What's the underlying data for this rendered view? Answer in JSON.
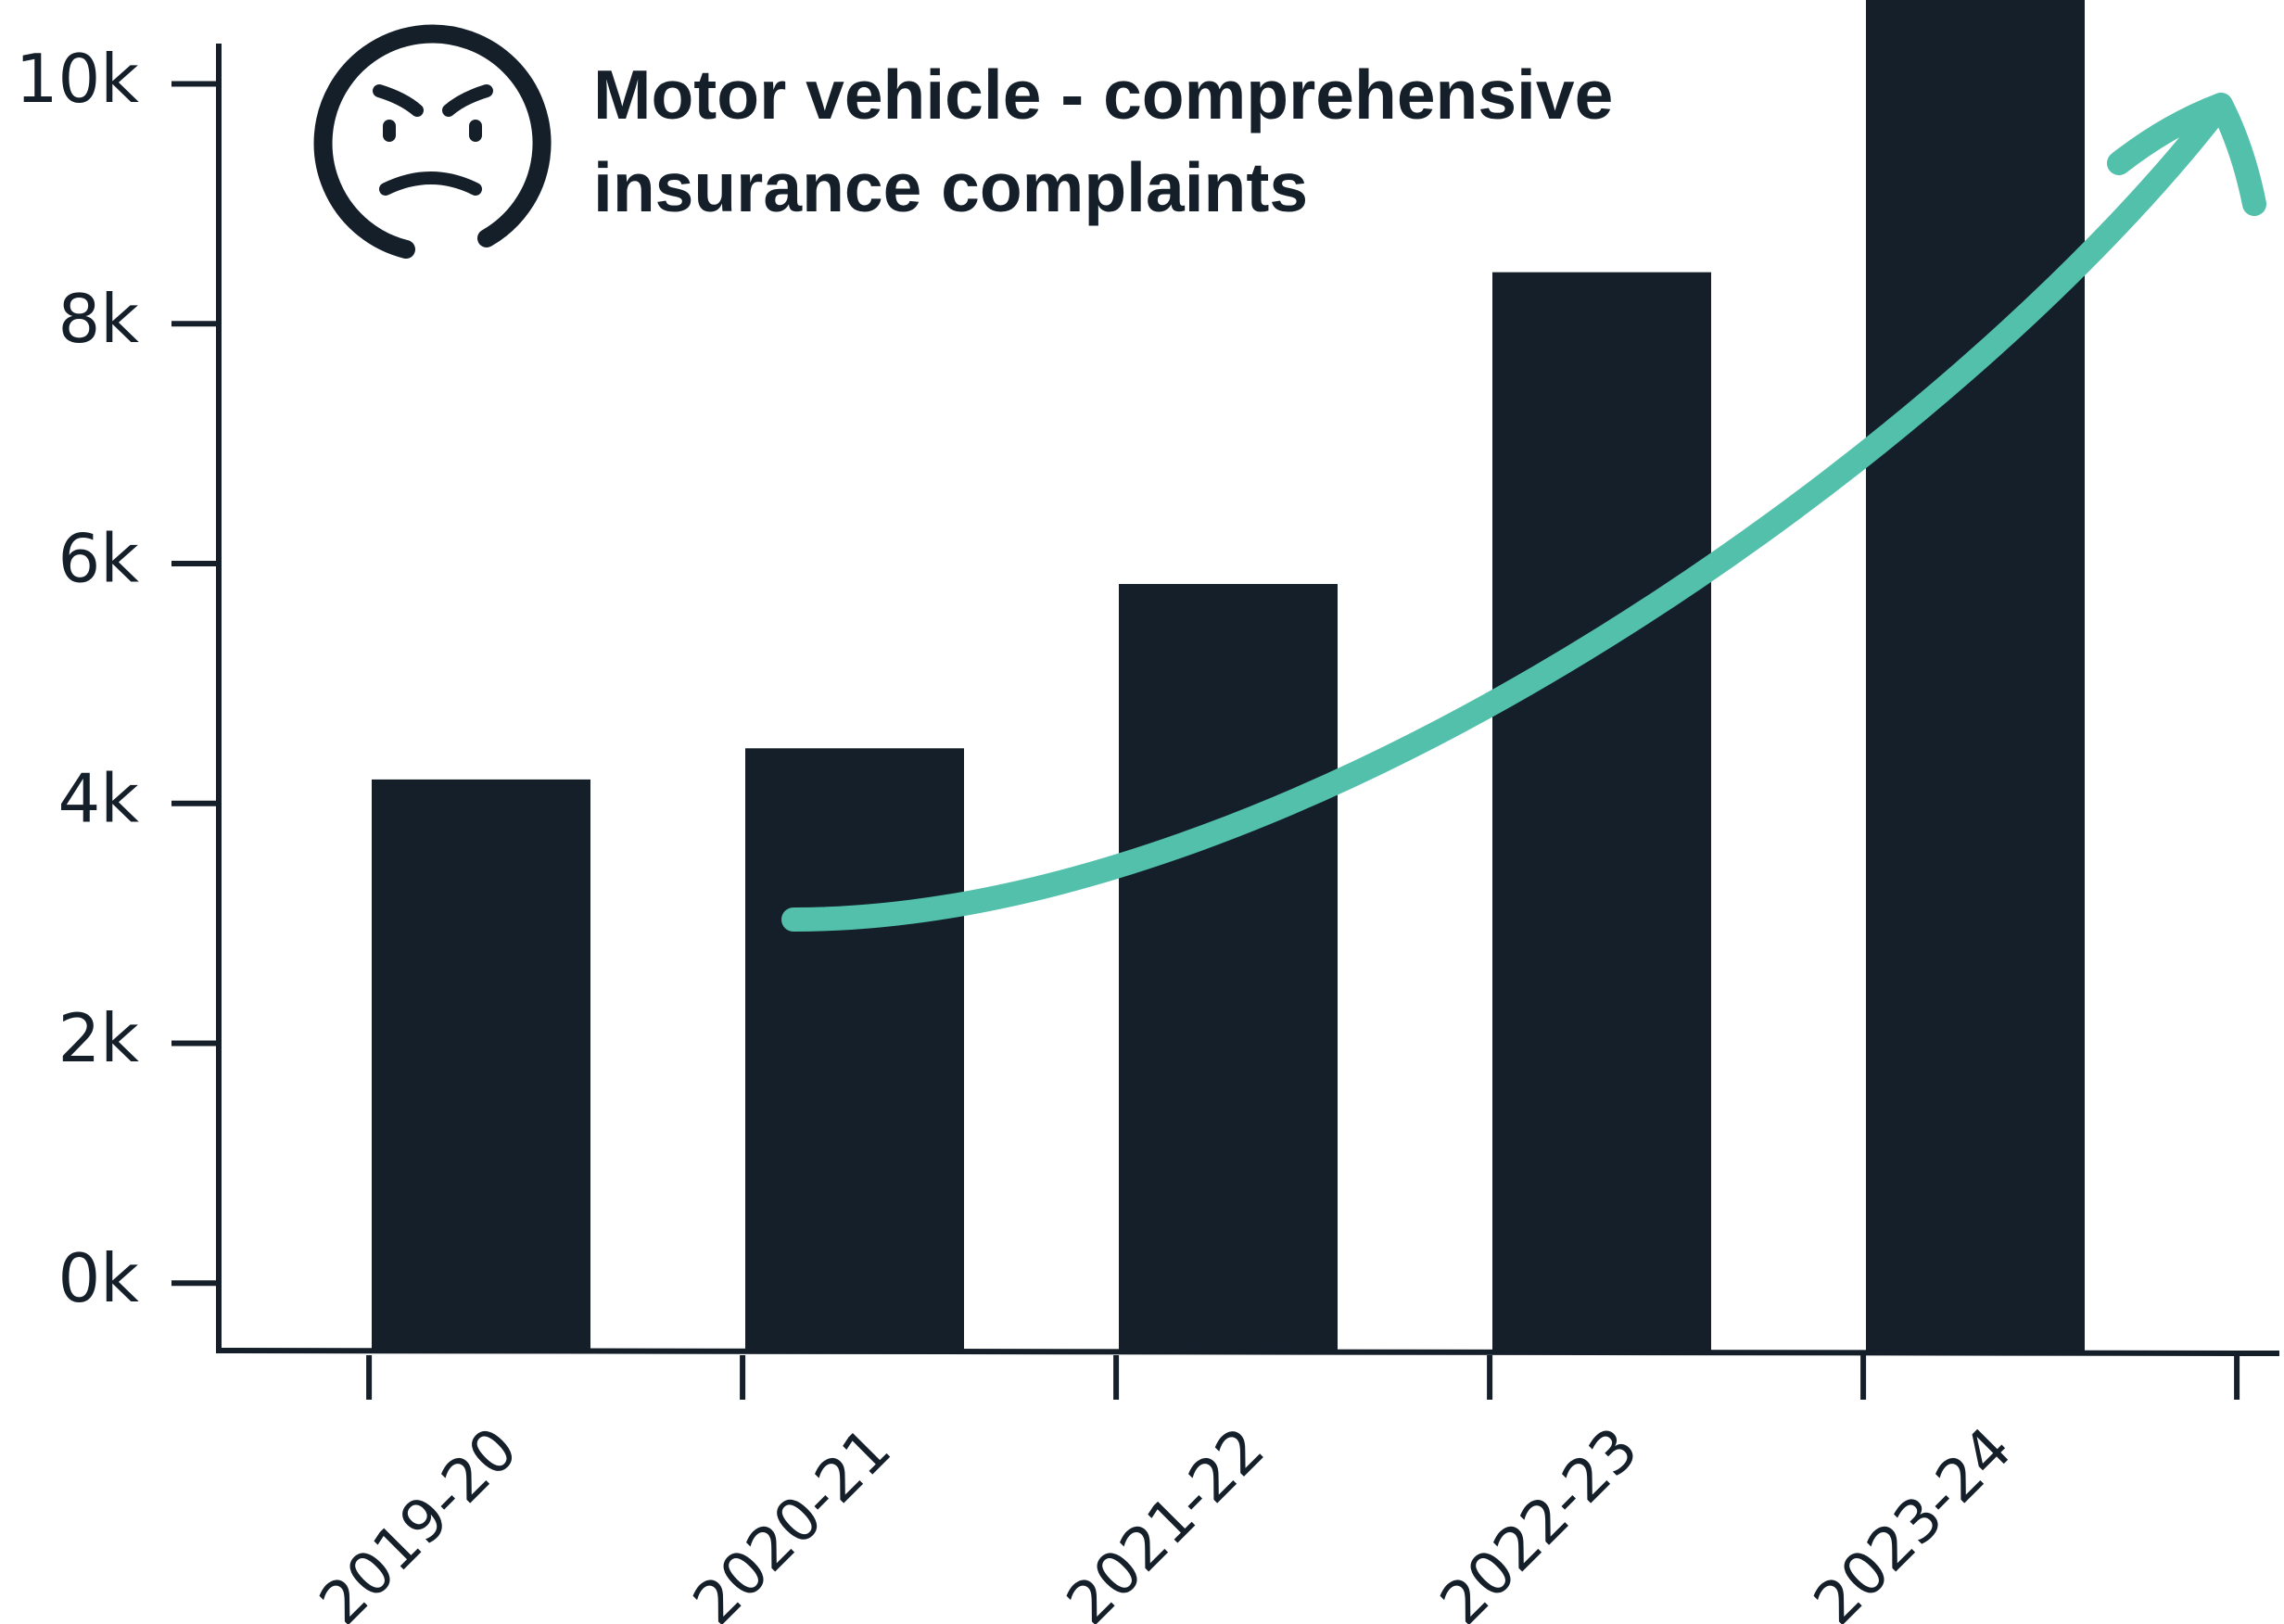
{
  "chart_data": {
    "type": "bar",
    "title": "Motor vehicle - comprehensive insurance complaints",
    "categories": [
      "2019-20",
      "2020-21",
      "2021-22",
      "2022-23",
      "2023-24"
    ],
    "values": [
      4200,
      4460,
      5830,
      8430,
      10800
    ],
    "color": "#141f2a",
    "ylim": [
      -570,
      10700
    ],
    "yticks": [
      {
        "value": 0,
        "label": "0k"
      },
      {
        "value": 2000,
        "label": "2k"
      },
      {
        "value": 4000,
        "label": "4k"
      },
      {
        "value": 6000,
        "label": "6k"
      },
      {
        "value": 8000,
        "label": "8k"
      },
      {
        "value": 10000,
        "label": "10k"
      }
    ],
    "grid": false
  }
}
